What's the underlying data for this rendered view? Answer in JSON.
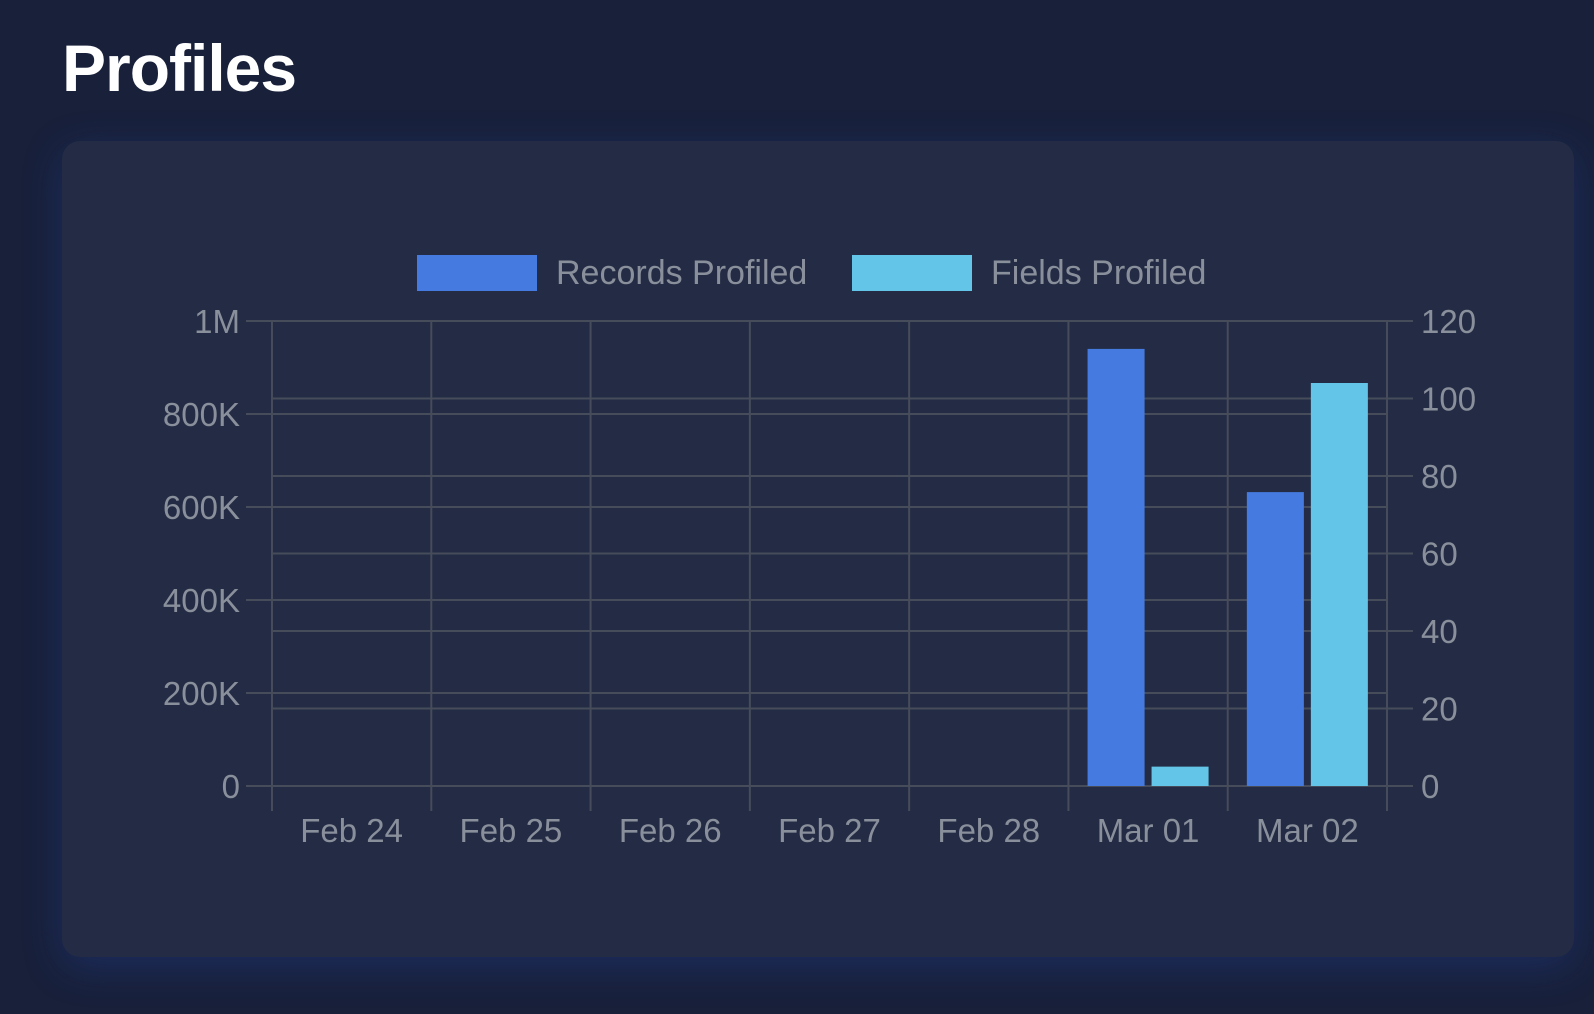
{
  "page": {
    "title": "Profiles"
  },
  "colors": {
    "records": "#457be0",
    "fields": "#63c6e8",
    "grid": "#464c5a",
    "text": "#8a8f9c"
  },
  "chart_data": {
    "type": "bar",
    "categories": [
      "Feb 24",
      "Feb 25",
      "Feb 26",
      "Feb 27",
      "Feb 28",
      "Mar 01",
      "Mar 02"
    ],
    "series": [
      {
        "name": "Records Profiled",
        "axis": "left",
        "values": [
          0,
          0,
          0,
          0,
          0,
          940000,
          632000
        ]
      },
      {
        "name": "Fields Profiled",
        "axis": "right",
        "values": [
          0,
          0,
          0,
          0,
          0,
          5,
          104
        ]
      }
    ],
    "ylim": [
      0,
      1000000
    ],
    "y_ticks": [
      "0",
      "200K",
      "400K",
      "600K",
      "800K",
      "1M"
    ],
    "y2lim": [
      0,
      120
    ],
    "y2_ticks": [
      "0",
      "20",
      "40",
      "60",
      "80",
      "100",
      "120"
    ],
    "legend": "top",
    "grid": true
  }
}
